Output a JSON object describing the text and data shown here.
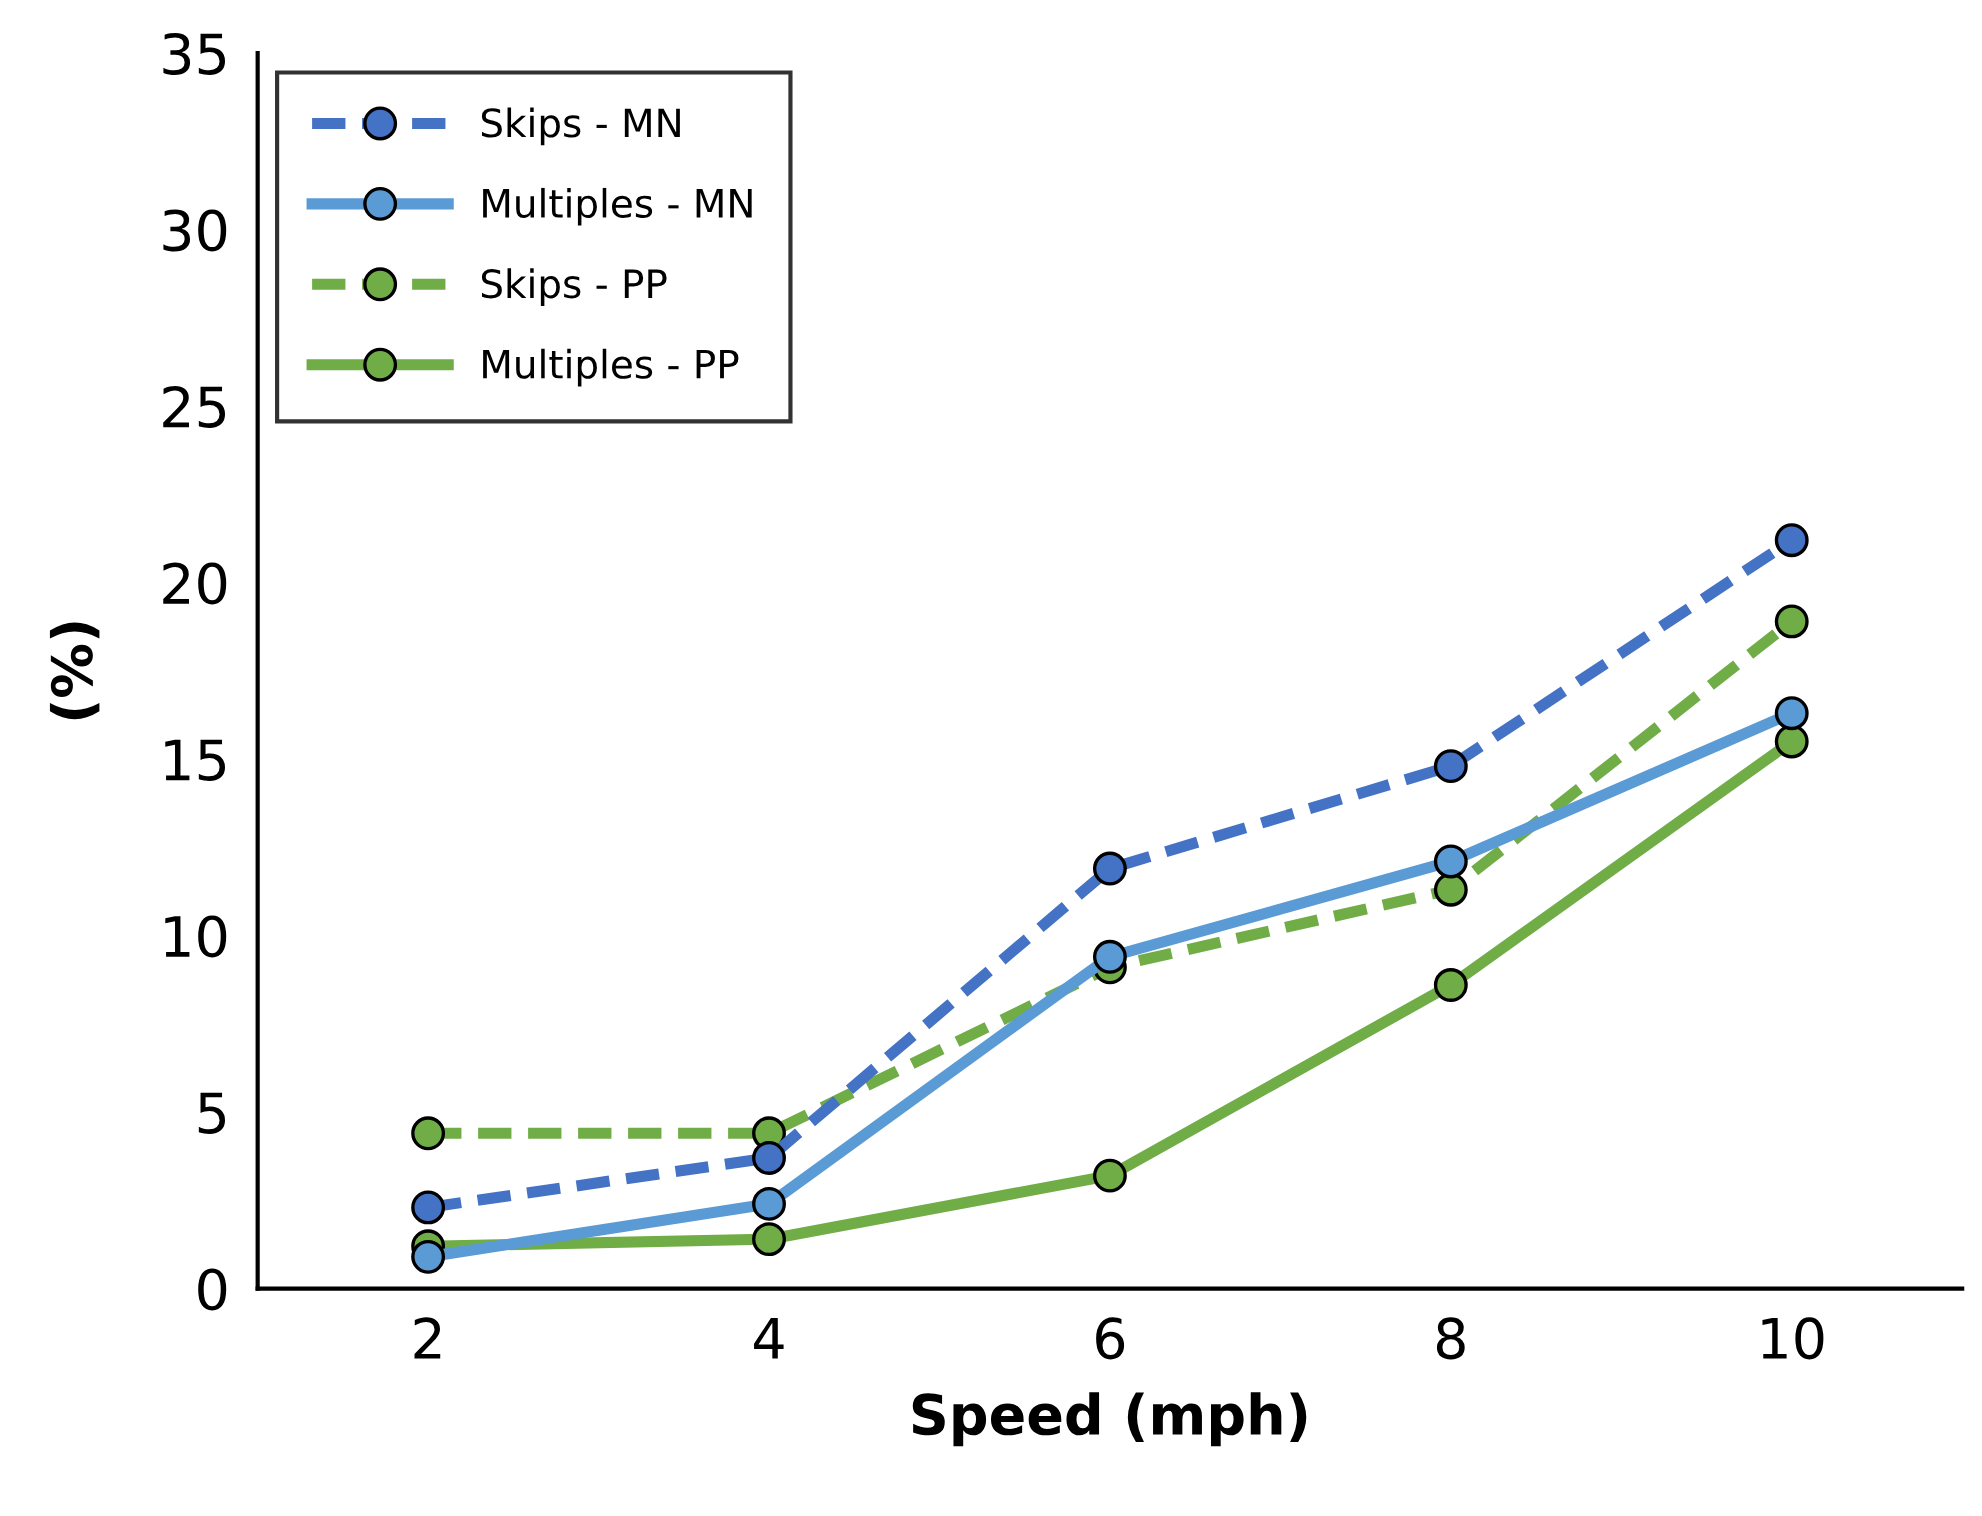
{
  "chart_data": {
    "type": "line",
    "xlabel": "Speed (mph)",
    "ylabel": "(%)",
    "x": [
      2,
      4,
      6,
      8,
      10
    ],
    "xlim": [
      1,
      11
    ],
    "xticks": [
      2,
      4,
      6,
      8,
      10
    ],
    "ylim": [
      0,
      35
    ],
    "yticks": [
      0,
      5,
      10,
      15,
      20,
      25,
      30,
      35
    ],
    "marker": "circle",
    "grid": false,
    "legend": "top left",
    "series": [
      {
        "name": "Skips - MN",
        "color": "#4472c4",
        "line_style": "dashed",
        "values": [
          2.3,
          3.7,
          11.9,
          14.8,
          21.2
        ]
      },
      {
        "name": "Multiples - MN",
        "color": "#5b9bd5",
        "line_style": "solid",
        "values": [
          0.9,
          2.4,
          9.4,
          12.1,
          16.3
        ]
      },
      {
        "name": "Skips - PP",
        "color": "#70ad47",
        "line_style": "dashed",
        "values": [
          4.4,
          4.4,
          9.1,
          11.3,
          18.9
        ]
      },
      {
        "name": "Multiples - PP",
        "color": "#70ad47",
        "line_style": "solid",
        "values": [
          1.2,
          1.4,
          3.2,
          8.6,
          15.5
        ]
      }
    ]
  }
}
